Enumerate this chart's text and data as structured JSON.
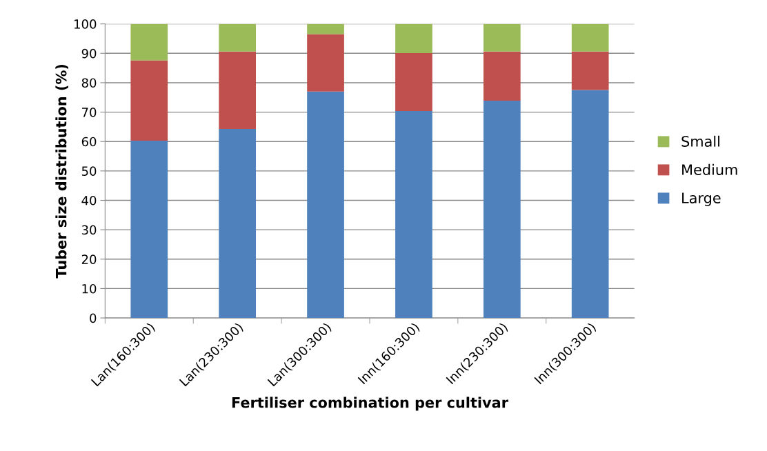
{
  "chart_data": {
    "type": "bar",
    "stacked": true,
    "xlabel": "Fertiliser combination per cultivar",
    "ylabel": "Tuber size distribution (%)",
    "categories": [
      "Lan(160:300)",
      "Lan(230:300)",
      "Lan(300:300)",
      "Inn(160:300)",
      "Inn(230:300)",
      "Inn(300:300)"
    ],
    "series": [
      {
        "name": "Large",
        "color": "#4f81bd",
        "values": [
          60.3,
          64.3,
          77.0,
          70.4,
          73.9,
          77.5
        ]
      },
      {
        "name": "Medium",
        "color": "#c0504d",
        "values": [
          27.3,
          26.3,
          19.5,
          19.7,
          16.7,
          13.1
        ]
      },
      {
        "name": "Small",
        "color": "#9bbb59",
        "values": [
          12.4,
          9.4,
          3.5,
          9.9,
          9.4,
          9.4
        ]
      }
    ],
    "ylim": [
      0,
      100
    ],
    "yticks": [
      0,
      10,
      20,
      30,
      40,
      50,
      60,
      70,
      80,
      90,
      100
    ],
    "grid": "y",
    "legend": "right"
  }
}
